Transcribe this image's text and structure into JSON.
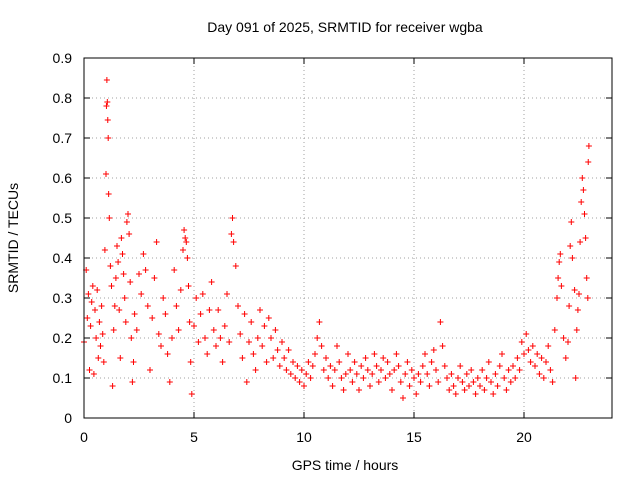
{
  "chart_data": {
    "type": "scatter",
    "title": "Day 091 of 2025, SRMTID for receiver wgba",
    "xlabel": "GPS time / hours",
    "ylabel": "SRMTID / TECUs",
    "xlim": [
      0,
      24
    ],
    "ylim": [
      0,
      0.9
    ],
    "xticks": [
      0,
      5,
      10,
      15,
      20
    ],
    "yticks": [
      0,
      0.1,
      0.2,
      0.3,
      0.4,
      0.5,
      0.6,
      0.7,
      0.8,
      0.9
    ],
    "grid": true,
    "marker": "+",
    "series": [
      {
        "name": "SRMTID",
        "color": "#ff0000",
        "points": [
          [
            0.0,
            0.19
          ],
          [
            0.1,
            0.37
          ],
          [
            0.15,
            0.25
          ],
          [
            0.2,
            0.31
          ],
          [
            0.25,
            0.12
          ],
          [
            0.3,
            0.23
          ],
          [
            0.35,
            0.29
          ],
          [
            0.4,
            0.33
          ],
          [
            0.45,
            0.11
          ],
          [
            0.5,
            0.27
          ],
          [
            0.55,
            0.2
          ],
          [
            0.6,
            0.32
          ],
          [
            0.65,
            0.15
          ],
          [
            0.7,
            0.24
          ],
          [
            0.75,
            0.18
          ],
          [
            0.8,
            0.28
          ],
          [
            0.85,
            0.21
          ],
          [
            0.9,
            0.14
          ],
          [
            0.95,
            0.42
          ],
          [
            1.0,
            0.61
          ],
          [
            1.02,
            0.78
          ],
          [
            1.04,
            0.845
          ],
          [
            1.06,
            0.79
          ],
          [
            1.08,
            0.745
          ],
          [
            1.1,
            0.7
          ],
          [
            1.12,
            0.56
          ],
          [
            1.15,
            0.5
          ],
          [
            1.2,
            0.38
          ],
          [
            1.25,
            0.33
          ],
          [
            1.3,
            0.08
          ],
          [
            1.35,
            0.22
          ],
          [
            1.4,
            0.28
          ],
          [
            1.45,
            0.35
          ],
          [
            1.5,
            0.43
          ],
          [
            1.55,
            0.39
          ],
          [
            1.6,
            0.27
          ],
          [
            1.65,
            0.15
          ],
          [
            1.7,
            0.45
          ],
          [
            1.75,
            0.41
          ],
          [
            1.8,
            0.36
          ],
          [
            1.85,
            0.3
          ],
          [
            1.9,
            0.24
          ],
          [
            1.95,
            0.49
          ],
          [
            2.0,
            0.51
          ],
          [
            2.05,
            0.46
          ],
          [
            2.1,
            0.34
          ],
          [
            2.15,
            0.2
          ],
          [
            2.2,
            0.09
          ],
          [
            2.25,
            0.14
          ],
          [
            2.3,
            0.26
          ],
          [
            2.4,
            0.22
          ],
          [
            2.5,
            0.36
          ],
          [
            2.6,
            0.31
          ],
          [
            2.7,
            0.41
          ],
          [
            2.8,
            0.37
          ],
          [
            2.9,
            0.28
          ],
          [
            3.0,
            0.12
          ],
          [
            3.1,
            0.25
          ],
          [
            3.2,
            0.35
          ],
          [
            3.3,
            0.44
          ],
          [
            3.4,
            0.21
          ],
          [
            3.5,
            0.18
          ],
          [
            3.6,
            0.3
          ],
          [
            3.7,
            0.26
          ],
          [
            3.8,
            0.16
          ],
          [
            3.9,
            0.09
          ],
          [
            4.0,
            0.2
          ],
          [
            4.1,
            0.37
          ],
          [
            4.2,
            0.28
          ],
          [
            4.3,
            0.22
          ],
          [
            4.4,
            0.32
          ],
          [
            4.5,
            0.42
          ],
          [
            4.55,
            0.47
          ],
          [
            4.6,
            0.45
          ],
          [
            4.65,
            0.44
          ],
          [
            4.7,
            0.4
          ],
          [
            4.75,
            0.33
          ],
          [
            4.8,
            0.24
          ],
          [
            4.85,
            0.14
          ],
          [
            4.9,
            0.06
          ],
          [
            5.0,
            0.23
          ],
          [
            5.1,
            0.3
          ],
          [
            5.2,
            0.19
          ],
          [
            5.3,
            0.26
          ],
          [
            5.4,
            0.31
          ],
          [
            5.5,
            0.2
          ],
          [
            5.6,
            0.16
          ],
          [
            5.7,
            0.27
          ],
          [
            5.8,
            0.34
          ],
          [
            5.9,
            0.22
          ],
          [
            6.0,
            0.18
          ],
          [
            6.1,
            0.27
          ],
          [
            6.2,
            0.2
          ],
          [
            6.3,
            0.14
          ],
          [
            6.4,
            0.23
          ],
          [
            6.5,
            0.31
          ],
          [
            6.6,
            0.19
          ],
          [
            6.7,
            0.46
          ],
          [
            6.75,
            0.5
          ],
          [
            6.8,
            0.44
          ],
          [
            6.9,
            0.38
          ],
          [
            7.0,
            0.28
          ],
          [
            7.1,
            0.21
          ],
          [
            7.2,
            0.15
          ],
          [
            7.3,
            0.26
          ],
          [
            7.4,
            0.09
          ],
          [
            7.5,
            0.19
          ],
          [
            7.6,
            0.24
          ],
          [
            7.7,
            0.16
          ],
          [
            7.8,
            0.12
          ],
          [
            7.9,
            0.2
          ],
          [
            8.0,
            0.27
          ],
          [
            8.1,
            0.18
          ],
          [
            8.2,
            0.23
          ],
          [
            8.3,
            0.14
          ],
          [
            8.4,
            0.25
          ],
          [
            8.5,
            0.2
          ],
          [
            8.6,
            0.15
          ],
          [
            8.7,
            0.22
          ],
          [
            8.8,
            0.17
          ],
          [
            8.9,
            0.13
          ],
          [
            9.0,
            0.19
          ],
          [
            9.1,
            0.15
          ],
          [
            9.2,
            0.12
          ],
          [
            9.3,
            0.17
          ],
          [
            9.4,
            0.11
          ],
          [
            9.5,
            0.14
          ],
          [
            9.6,
            0.1
          ],
          [
            9.7,
            0.13
          ],
          [
            9.8,
            0.09
          ],
          [
            9.9,
            0.12
          ],
          [
            10.0,
            0.08
          ],
          [
            10.1,
            0.11
          ],
          [
            10.2,
            0.14
          ],
          [
            10.3,
            0.1
          ],
          [
            10.4,
            0.13
          ],
          [
            10.5,
            0.16
          ],
          [
            10.6,
            0.2
          ],
          [
            10.7,
            0.24
          ],
          [
            10.8,
            0.18
          ],
          [
            10.9,
            0.12
          ],
          [
            11.0,
            0.15
          ],
          [
            11.1,
            0.1
          ],
          [
            11.2,
            0.13
          ],
          [
            11.3,
            0.08
          ],
          [
            11.4,
            0.12
          ],
          [
            11.5,
            0.18
          ],
          [
            11.6,
            0.14
          ],
          [
            11.7,
            0.1
          ],
          [
            11.8,
            0.07
          ],
          [
            11.9,
            0.11
          ],
          [
            12.0,
            0.16
          ],
          [
            12.1,
            0.12
          ],
          [
            12.2,
            0.09
          ],
          [
            12.3,
            0.14
          ],
          [
            12.4,
            0.11
          ],
          [
            12.5,
            0.07
          ],
          [
            12.6,
            0.13
          ],
          [
            12.7,
            0.1
          ],
          [
            12.8,
            0.15
          ],
          [
            12.9,
            0.12
          ],
          [
            13.0,
            0.08
          ],
          [
            13.1,
            0.11
          ],
          [
            13.2,
            0.16
          ],
          [
            13.3,
            0.13
          ],
          [
            13.4,
            0.09
          ],
          [
            13.5,
            0.12
          ],
          [
            13.6,
            0.15
          ],
          [
            13.7,
            0.1
          ],
          [
            13.8,
            0.14
          ],
          [
            13.9,
            0.11
          ],
          [
            14.0,
            0.07
          ],
          [
            14.1,
            0.12
          ],
          [
            14.2,
            0.16
          ],
          [
            14.3,
            0.13
          ],
          [
            14.4,
            0.09
          ],
          [
            14.5,
            0.05
          ],
          [
            14.6,
            0.11
          ],
          [
            14.7,
            0.14
          ],
          [
            14.8,
            0.08
          ],
          [
            14.9,
            0.12
          ],
          [
            15.0,
            0.1
          ],
          [
            15.1,
            0.06
          ],
          [
            15.2,
            0.11
          ],
          [
            15.3,
            0.09
          ],
          [
            15.4,
            0.13
          ],
          [
            15.5,
            0.16
          ],
          [
            15.6,
            0.11
          ],
          [
            15.7,
            0.08
          ],
          [
            15.8,
            0.14
          ],
          [
            15.9,
            0.17
          ],
          [
            16.0,
            0.12
          ],
          [
            16.1,
            0.09
          ],
          [
            16.2,
            0.24
          ],
          [
            16.3,
            0.18
          ],
          [
            16.4,
            0.13
          ],
          [
            16.5,
            0.1
          ],
          [
            16.6,
            0.07
          ],
          [
            16.7,
            0.11
          ],
          [
            16.8,
            0.08
          ],
          [
            16.9,
            0.06
          ],
          [
            17.0,
            0.1
          ],
          [
            17.1,
            0.13
          ],
          [
            17.2,
            0.09
          ],
          [
            17.3,
            0.07
          ],
          [
            17.4,
            0.11
          ],
          [
            17.5,
            0.08
          ],
          [
            17.6,
            0.12
          ],
          [
            17.7,
            0.09
          ],
          [
            17.8,
            0.06
          ],
          [
            17.9,
            0.1
          ],
          [
            18.0,
            0.08
          ],
          [
            18.1,
            0.12
          ],
          [
            18.2,
            0.07
          ],
          [
            18.3,
            0.1
          ],
          [
            18.4,
            0.14
          ],
          [
            18.5,
            0.09
          ],
          [
            18.6,
            0.06
          ],
          [
            18.7,
            0.11
          ],
          [
            18.8,
            0.08
          ],
          [
            18.9,
            0.13
          ],
          [
            19.0,
            0.16
          ],
          [
            19.1,
            0.1
          ],
          [
            19.2,
            0.07
          ],
          [
            19.3,
            0.12
          ],
          [
            19.4,
            0.09
          ],
          [
            19.5,
            0.13
          ],
          [
            19.6,
            0.1
          ],
          [
            19.7,
            0.15
          ],
          [
            19.8,
            0.12
          ],
          [
            19.9,
            0.19
          ],
          [
            20.0,
            0.16
          ],
          [
            20.1,
            0.21
          ],
          [
            20.2,
            0.17
          ],
          [
            20.3,
            0.14
          ],
          [
            20.4,
            0.18
          ],
          [
            20.5,
            0.13
          ],
          [
            20.6,
            0.16
          ],
          [
            20.7,
            0.11
          ],
          [
            20.8,
            0.15
          ],
          [
            20.9,
            0.1
          ],
          [
            21.0,
            0.14
          ],
          [
            21.1,
            0.18
          ],
          [
            21.2,
            0.12
          ],
          [
            21.3,
            0.09
          ],
          [
            21.4,
            0.22
          ],
          [
            21.5,
            0.3
          ],
          [
            21.55,
            0.35
          ],
          [
            21.6,
            0.39
          ],
          [
            21.65,
            0.41
          ],
          [
            21.7,
            0.33
          ],
          [
            21.8,
            0.2
          ],
          [
            21.9,
            0.15
          ],
          [
            22.0,
            0.19
          ],
          [
            22.05,
            0.28
          ],
          [
            22.1,
            0.43
          ],
          [
            22.15,
            0.49
          ],
          [
            22.2,
            0.4
          ],
          [
            22.3,
            0.32
          ],
          [
            22.35,
            0.1
          ],
          [
            22.4,
            0.22
          ],
          [
            22.45,
            0.27
          ],
          [
            22.5,
            0.31
          ],
          [
            22.55,
            0.44
          ],
          [
            22.6,
            0.54
          ],
          [
            22.65,
            0.6
          ],
          [
            22.7,
            0.57
          ],
          [
            22.75,
            0.51
          ],
          [
            22.8,
            0.45
          ],
          [
            22.85,
            0.35
          ],
          [
            22.9,
            0.3
          ],
          [
            22.92,
            0.64
          ],
          [
            22.95,
            0.68
          ]
        ]
      }
    ]
  }
}
